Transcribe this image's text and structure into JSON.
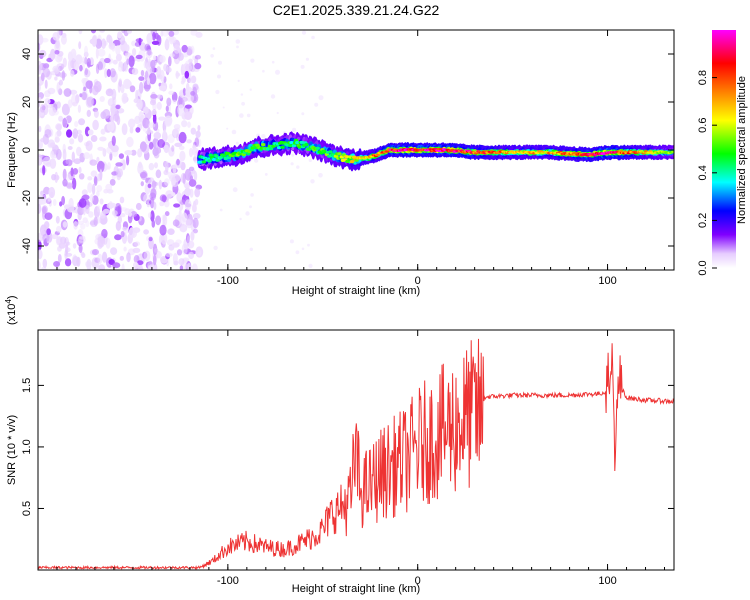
{
  "figure_title": "C2E1.2025.339.21.24.G22",
  "chart_data": [
    {
      "type": "heatmap",
      "title": "C2E1.2025.339.21.24.G22",
      "xlabel": "Height of straight line (km)",
      "ylabel": "Frequency (Hz)",
      "xlim": [
        -200,
        135
      ],
      "ylim": [
        -50,
        50
      ],
      "x_ticks": [
        -100,
        0,
        100
      ],
      "y_ticks": [
        -40,
        -20,
        0,
        20,
        40
      ],
      "x_tick_labels": [
        "-100",
        "0",
        "100"
      ],
      "y_tick_labels": [
        "-40",
        "-20",
        "0",
        "20",
        "40"
      ],
      "colorbar": {
        "label": "Normalized spectral amplitude",
        "range": [
          0,
          1
        ],
        "ticks": [
          "0.0",
          "0.2",
          "0.4",
          "0.6",
          "0.8"
        ],
        "tick_values": [
          0.0,
          0.2,
          0.4,
          0.6,
          0.8
        ],
        "colormap": [
          "#ffffff",
          "#e6ccff",
          "#8000ff",
          "#0000ff",
          "#00ffff",
          "#00ff00",
          "#ffff00",
          "#ff8000",
          "#ff0000",
          "#ff00ff"
        ]
      },
      "ridge": {
        "description_values_x": [
          -115,
          -105,
          -95,
          -85,
          -75,
          -65,
          -55,
          -45,
          -35,
          -25,
          -15,
          -5,
          5,
          15,
          30,
          50,
          70,
          90,
          100,
          110,
          135
        ],
        "center_freq_hz": [
          -4,
          -3,
          -2,
          1,
          2,
          3,
          1,
          -2,
          -4,
          -3,
          0,
          0,
          0,
          0,
          -1,
          -1,
          -1,
          -2,
          -1,
          -1,
          -1
        ],
        "peak_amplitude": [
          0.4,
          0.45,
          0.5,
          0.5,
          0.45,
          0.45,
          0.5,
          0.5,
          0.6,
          0.7,
          0.85,
          0.95,
          0.9,
          0.95,
          0.85,
          0.7,
          0.7,
          0.85,
          0.95,
          0.8,
          0.5
        ]
      },
      "noise_region_x": [
        -200,
        -115
      ]
    },
    {
      "type": "line",
      "xlabel": "Height of straight line (km)",
      "ylabel": "SNR (10 * v/v)",
      "ylabel_main": "SNR (10 * v/v)",
      "y_multiplier_label": "(x10",
      "y_multiplier_exp": "4",
      "y_multiplier_close": ")",
      "xlim": [
        -200,
        135
      ],
      "ylim": [
        0,
        1.95
      ],
      "x_ticks": [
        -100,
        0,
        100
      ],
      "y_ticks": [
        0.5,
        1.0,
        1.5
      ],
      "x_tick_labels": [
        "-100",
        "0",
        "100"
      ],
      "y_tick_labels": [
        "0.5",
        "1.0",
        "1.5"
      ],
      "color": "#ee3333",
      "series": [
        {
          "name": "SNR",
          "x": [
            -200,
            -160,
            -115,
            -108,
            -100,
            -90,
            -80,
            -70,
            -60,
            -50,
            -45,
            -40,
            -35,
            -33,
            -30,
            -25,
            -20,
            -15,
            -10,
            -5,
            0,
            5,
            10,
            15,
            20,
            25,
            30,
            40,
            50,
            60,
            70,
            80,
            90,
            95,
            100,
            102,
            104,
            106,
            110,
            120,
            135
          ],
          "y": [
            0.02,
            0.02,
            0.02,
            0.08,
            0.2,
            0.25,
            0.2,
            0.18,
            0.25,
            0.35,
            0.5,
            0.55,
            0.65,
            1.05,
            0.7,
            0.75,
            0.85,
            0.9,
            0.95,
            1.0,
            1.1,
            1.15,
            1.2,
            1.25,
            1.3,
            1.35,
            1.4,
            1.41,
            1.42,
            1.42,
            1.42,
            1.42,
            1.43,
            1.43,
            1.45,
            1.85,
            0.95,
            1.55,
            1.4,
            1.38,
            1.37
          ]
        }
      ]
    }
  ]
}
